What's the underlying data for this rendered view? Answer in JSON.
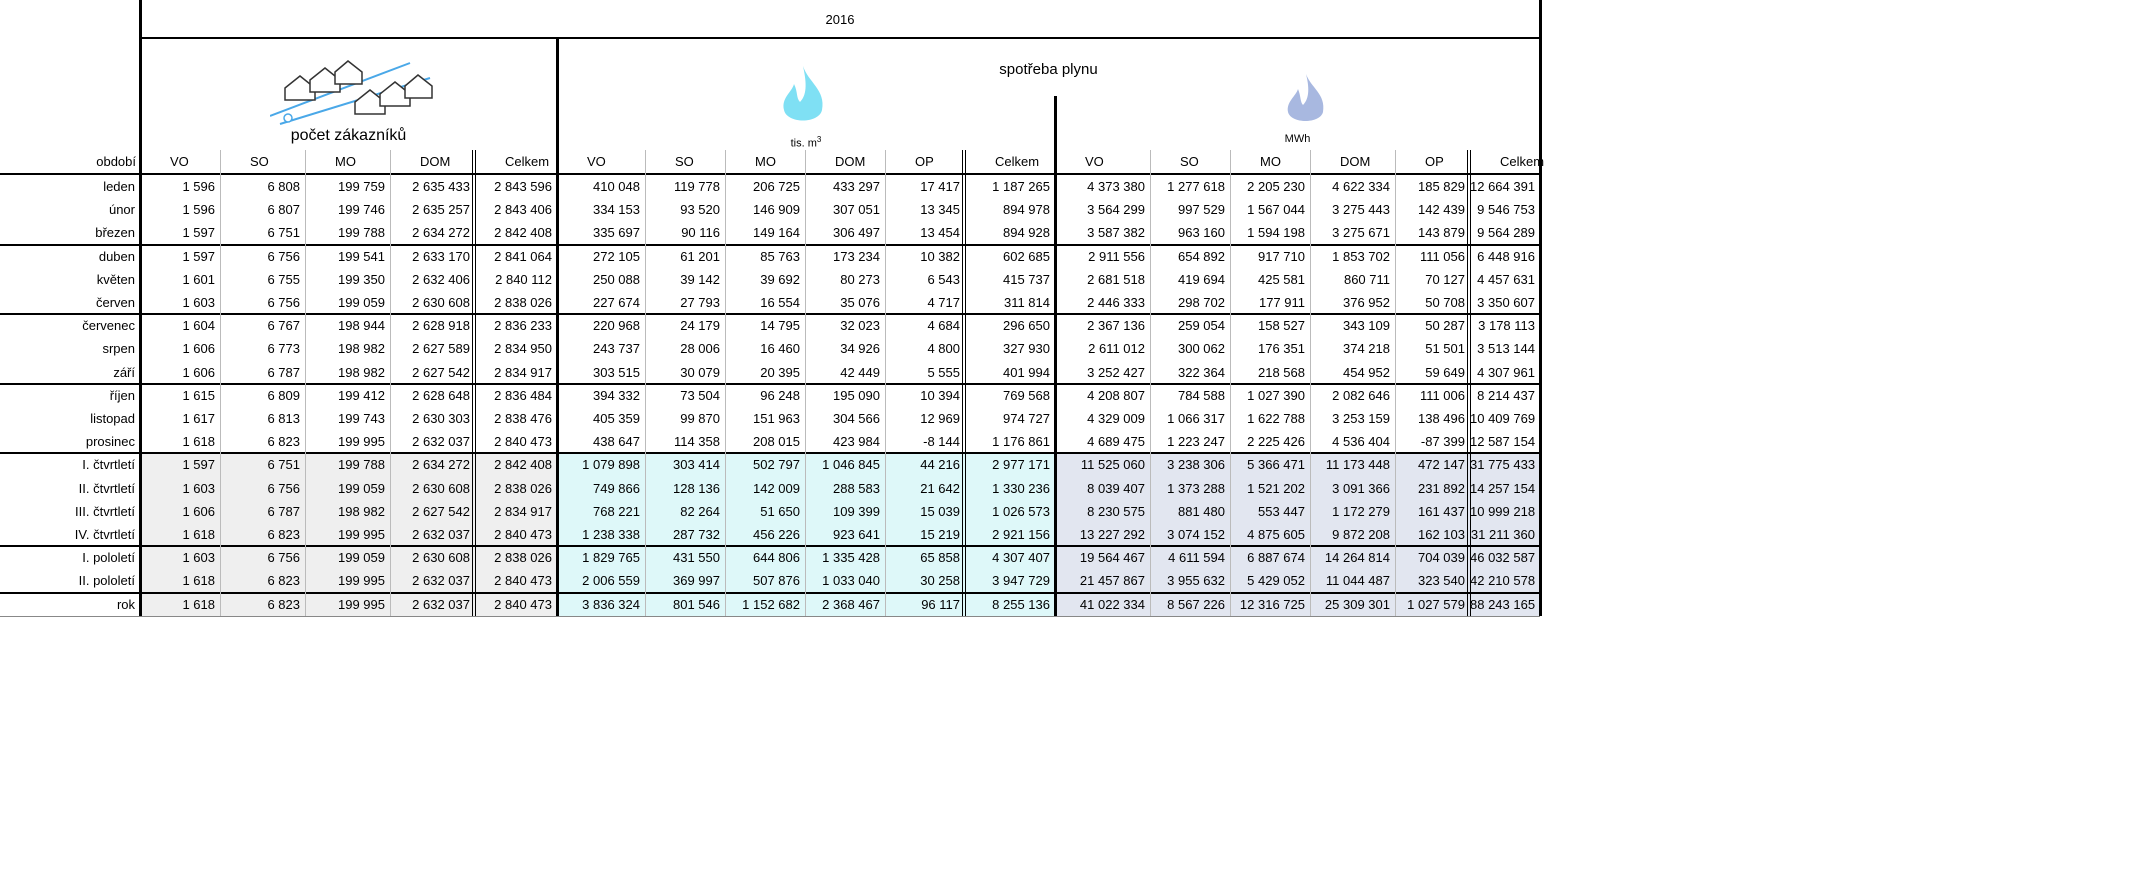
{
  "header": {
    "year": "2016",
    "customers_title": "počet zákazníků",
    "gas_title": "spotřeba plynu",
    "m3_unit": "tis. m",
    "m3_unit_sup": "3",
    "mwh_unit": "MWh",
    "period_label": "období"
  },
  "columns": {
    "customers": [
      "VO",
      "SO",
      "MO",
      "DOM",
      "Celkem"
    ],
    "gas": [
      "VO",
      "SO",
      "MO",
      "DOM",
      "OP",
      "Celkem"
    ],
    "mwh": [
      "VO",
      "SO",
      "MO",
      "DOM",
      "OP",
      "Celkem"
    ]
  },
  "rows": [
    {
      "period": "leden",
      "values": [
        "1 596",
        "6 808",
        "199 759",
        "2 635 433",
        "2 843 596",
        "410 048",
        "119 778",
        "206 725",
        "433 297",
        "17 417",
        "1 187 265",
        "4 373 380",
        "1 277 618",
        "2 205 230",
        "4 622 334",
        "185 829",
        "12 664 391"
      ]
    },
    {
      "period": "únor",
      "values": [
        "1 596",
        "6 807",
        "199 746",
        "2 635 257",
        "2 843 406",
        "334 153",
        "93 520",
        "146 909",
        "307 051",
        "13 345",
        "894 978",
        "3 564 299",
        "997 529",
        "1 567 044",
        "3 275 443",
        "142 439",
        "9 546 753"
      ]
    },
    {
      "period": "březen",
      "values": [
        "1 597",
        "6 751",
        "199 788",
        "2 634 272",
        "2 842 408",
        "335 697",
        "90 116",
        "149 164",
        "306 497",
        "13 454",
        "894 928",
        "3 587 382",
        "963 160",
        "1 594 198",
        "3 275 671",
        "143 879",
        "9 564 289"
      ]
    },
    {
      "period": "duben",
      "values": [
        "1 597",
        "6 756",
        "199 541",
        "2 633 170",
        "2 841 064",
        "272 105",
        "61 201",
        "85 763",
        "173 234",
        "10 382",
        "602 685",
        "2 911 556",
        "654 892",
        "917 710",
        "1 853 702",
        "111 056",
        "6 448 916"
      ]
    },
    {
      "period": "květen",
      "values": [
        "1 601",
        "6 755",
        "199 350",
        "2 632 406",
        "2 840 112",
        "250 088",
        "39 142",
        "39 692",
        "80 273",
        "6 543",
        "415 737",
        "2 681 518",
        "419 694",
        "425 581",
        "860 711",
        "70 127",
        "4 457 631"
      ]
    },
    {
      "period": "červen",
      "values": [
        "1 603",
        "6 756",
        "199 059",
        "2 630 608",
        "2 838 026",
        "227 674",
        "27 793",
        "16 554",
        "35 076",
        "4 717",
        "311 814",
        "2 446 333",
        "298 702",
        "177 911",
        "376 952",
        "50 708",
        "3 350 607"
      ]
    },
    {
      "period": "červenec",
      "values": [
        "1 604",
        "6 767",
        "198 944",
        "2 628 918",
        "2 836 233",
        "220 968",
        "24 179",
        "14 795",
        "32 023",
        "4 684",
        "296 650",
        "2 367 136",
        "259 054",
        "158 527",
        "343 109",
        "50 287",
        "3 178 113"
      ]
    },
    {
      "period": "srpen",
      "values": [
        "1 606",
        "6 773",
        "198 982",
        "2 627 589",
        "2 834 950",
        "243 737",
        "28 006",
        "16 460",
        "34 926",
        "4 800",
        "327 930",
        "2 611 012",
        "300 062",
        "176 351",
        "374 218",
        "51 501",
        "3 513 144"
      ]
    },
    {
      "period": "září",
      "values": [
        "1 606",
        "6 787",
        "198 982",
        "2 627 542",
        "2 834 917",
        "303 515",
        "30 079",
        "20 395",
        "42 449",
        "5 555",
        "401 994",
        "3 252 427",
        "322 364",
        "218 568",
        "454 952",
        "59 649",
        "4 307 961"
      ]
    },
    {
      "period": "říjen",
      "values": [
        "1 615",
        "6 809",
        "199 412",
        "2 628 648",
        "2 836 484",
        "394 332",
        "73 504",
        "96 248",
        "195 090",
        "10 394",
        "769 568",
        "4 208 807",
        "784 588",
        "1 027 390",
        "2 082 646",
        "111 006",
        "8 214 437"
      ]
    },
    {
      "period": "listopad",
      "values": [
        "1 617",
        "6 813",
        "199 743",
        "2 630 303",
        "2 838 476",
        "405 359",
        "99 870",
        "151 963",
        "304 566",
        "12 969",
        "974 727",
        "4 329 009",
        "1 066 317",
        "1 622 788",
        "3 253 159",
        "138 496",
        "10 409 769"
      ]
    },
    {
      "period": "prosinec",
      "values": [
        "1 618",
        "6 823",
        "199 995",
        "2 632 037",
        "2 840 473",
        "438 647",
        "114 358",
        "208 015",
        "423 984",
        "-8 144",
        "1 176 861",
        "4 689 475",
        "1 223 247",
        "2 225 426",
        "4 536 404",
        "-87 399",
        "12 587 154"
      ]
    },
    {
      "period": "I. čtvrtletí",
      "values": [
        "1 597",
        "6 751",
        "199 788",
        "2 634 272",
        "2 842 408",
        "1 079 898",
        "303 414",
        "502 797",
        "1 046 845",
        "44 216",
        "2 977 171",
        "11 525 060",
        "3 238 306",
        "5 366 471",
        "11 173 448",
        "472 147",
        "31 775 433"
      ]
    },
    {
      "period": "II. čtvrtletí",
      "values": [
        "1 603",
        "6 756",
        "199 059",
        "2 630 608",
        "2 838 026",
        "749 866",
        "128 136",
        "142 009",
        "288 583",
        "21 642",
        "1 330 236",
        "8 039 407",
        "1 373 288",
        "1 521 202",
        "3 091 366",
        "231 892",
        "14 257 154"
      ]
    },
    {
      "period": "III. čtvrtletí",
      "values": [
        "1 606",
        "6 787",
        "198 982",
        "2 627 542",
        "2 834 917",
        "768 221",
        "82 264",
        "51 650",
        "109 399",
        "15 039",
        "1 026 573",
        "8 230 575",
        "881 480",
        "553 447",
        "1 172 279",
        "161 437",
        "10 999 218"
      ]
    },
    {
      "period": "IV. čtvrtletí",
      "values": [
        "1 618",
        "6 823",
        "199 995",
        "2 632 037",
        "2 840 473",
        "1 238 338",
        "287 732",
        "456 226",
        "923 641",
        "15 219",
        "2 921 156",
        "13 227 292",
        "3 074 152",
        "4 875 605",
        "9 872 208",
        "162 103",
        "31 211 360"
      ]
    },
    {
      "period": "I. pololetí",
      "values": [
        "1 603",
        "6 756",
        "199 059",
        "2 630 608",
        "2 838 026",
        "1 829 765",
        "431 550",
        "644 806",
        "1 335 428",
        "65 858",
        "4 307 407",
        "19 564 467",
        "4 611 594",
        "6 887 674",
        "14 264 814",
        "704 039",
        "46 032 587"
      ]
    },
    {
      "period": "II. pololetí",
      "values": [
        "1 618",
        "6 823",
        "199 995",
        "2 632 037",
        "2 840 473",
        "2 006 559",
        "369 997",
        "507 876",
        "1 033 040",
        "30 258",
        "3 947 729",
        "21 457 867",
        "3 955 632",
        "5 429 052",
        "11 044 487",
        "323 540",
        "42 210 578"
      ]
    },
    {
      "period": "rok",
      "values": [
        "1 618",
        "6 823",
        "199 995",
        "2 632 037",
        "2 840 473",
        "3 836 324",
        "801 546",
        "1 152 682",
        "2 368 467",
        "96 117",
        "8 255 136",
        "41 022 334",
        "8 567 226",
        "12 316 725",
        "25 309 301",
        "1 027 579",
        "88 243 165"
      ]
    }
  ]
}
